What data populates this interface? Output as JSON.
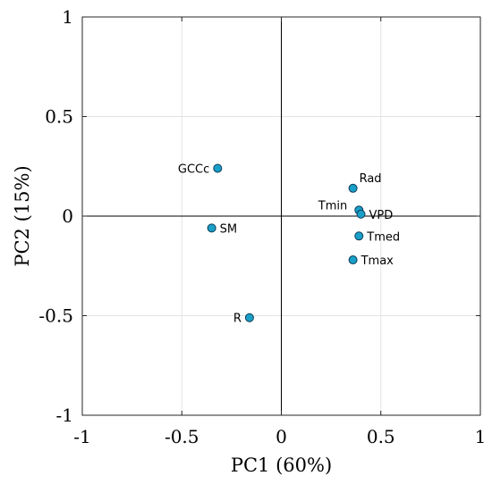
{
  "chart_data": {
    "type": "scatter",
    "xlabel": "PC1 (60%)",
    "ylabel": "PC2 (15%)",
    "xlim": [
      -1,
      1
    ],
    "ylim": [
      -1,
      1
    ],
    "xticks": [
      "-1",
      "-0.5",
      "0",
      "0.5",
      "1"
    ],
    "yticks": [
      "-1",
      "-0.5",
      "0",
      "0.5",
      "1"
    ],
    "grid": true,
    "point_color": "#1aa0c8",
    "points": [
      {
        "label": "GCCc",
        "x": -0.32,
        "y": 0.24,
        "label_side": "left"
      },
      {
        "label": "SM",
        "x": -0.35,
        "y": -0.06,
        "label_side": "right"
      },
      {
        "label": "R",
        "x": -0.16,
        "y": -0.51,
        "label_side": "left"
      },
      {
        "label": "Rad",
        "x": 0.36,
        "y": 0.14,
        "label_side": "upper-right"
      },
      {
        "label": "Tmin",
        "x": 0.39,
        "y": 0.03,
        "label_side": "upper-left"
      },
      {
        "label": "VPD",
        "x": 0.4,
        "y": 0.01,
        "label_side": "right"
      },
      {
        "label": "Tmed",
        "x": 0.39,
        "y": -0.1,
        "label_side": "right"
      },
      {
        "label": "Tmax",
        "x": 0.36,
        "y": -0.22,
        "label_side": "right"
      }
    ]
  }
}
